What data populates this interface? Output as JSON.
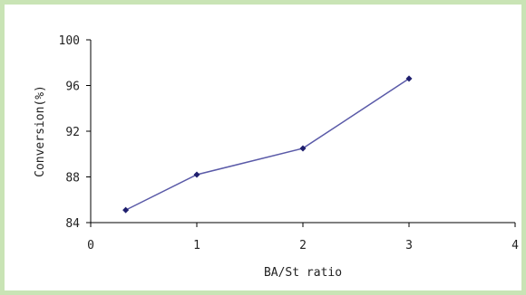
{
  "chart_data": {
    "type": "line",
    "title": "",
    "xlabel": "BA/St ratio",
    "ylabel": "Conversion(%)",
    "xlim": [
      0,
      4
    ],
    "ylim": [
      84,
      100
    ],
    "x_ticks": [
      0,
      1,
      2,
      3,
      4
    ],
    "y_ticks": [
      84,
      88,
      92,
      96,
      100
    ],
    "grid": false,
    "legend": "none",
    "series": [
      {
        "x": [
          0.33,
          1,
          2,
          3
        ],
        "y": [
          85.1,
          88.2,
          90.5,
          96.6
        ]
      }
    ],
    "colors": {
      "line": "#5a5aa8",
      "marker": "#1f1f6e",
      "axis": "#000000",
      "frame_border": "#c9e4b5"
    }
  }
}
